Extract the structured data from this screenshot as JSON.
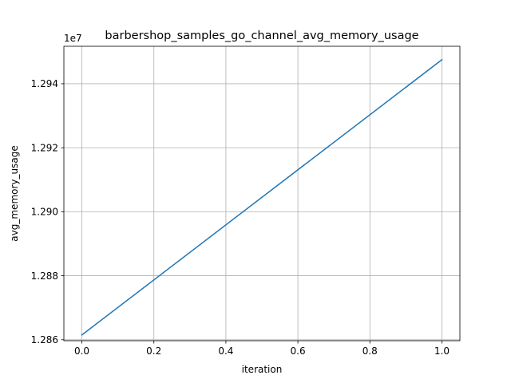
{
  "chart_data": {
    "type": "line",
    "title": "barbershop_samples_go_channel_avg_memory_usage",
    "xlabel": "iteration",
    "ylabel": "avg_memory_usage",
    "y_offset_label": "1e7",
    "xlim": [
      -0.05,
      1.05
    ],
    "ylim": [
      1.28597,
      1.29517
    ],
    "x_ticks": [
      0.0,
      0.2,
      0.4,
      0.6,
      0.8,
      1.0
    ],
    "x_tick_labels": [
      "0.0",
      "0.2",
      "0.4",
      "0.6",
      "0.8",
      "1.0"
    ],
    "y_ticks": [
      1.286,
      1.288,
      1.29,
      1.292,
      1.294
    ],
    "y_tick_labels": [
      "1.286",
      "1.288",
      "1.290",
      "1.292",
      "1.294"
    ],
    "grid": true,
    "series": [
      {
        "name": "avg_memory_usage",
        "color": "#1f77b4",
        "x": [
          0.0,
          1.0
        ],
        "y": [
          1.28615,
          1.29475
        ]
      }
    ]
  }
}
